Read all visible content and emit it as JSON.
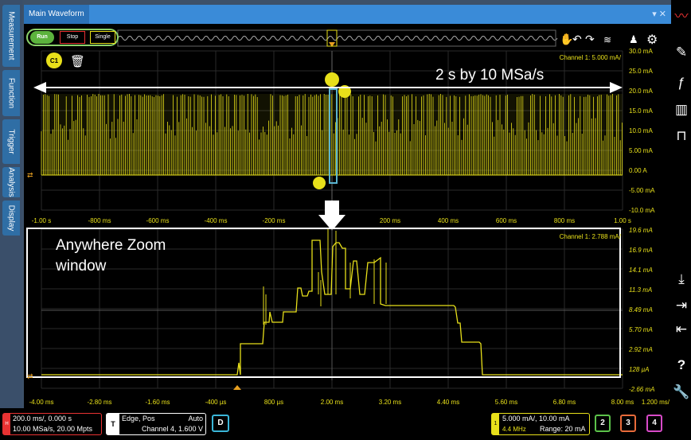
{
  "left_tabs": [
    "Measurement",
    "Function",
    "Trigger",
    "Analysis",
    "Display"
  ],
  "window": {
    "title": "Main Waveform",
    "controls": "▾ ✕"
  },
  "controls": {
    "run": "Run",
    "stop": "Stop",
    "single": "Single",
    "channel_marker": "C1"
  },
  "main_plot": {
    "annotation": "2 s by 10 MSa/s",
    "channel_readout": "Channel 1: 5.000 mA/",
    "y_ticks": [
      "30.0 mA",
      "25.0 mA",
      "20.0 mA",
      "15.0 mA",
      "10.0 mA",
      "5.00 mA",
      "0.00 A",
      "-5.00 mA",
      "-10.0 mA"
    ],
    "x_ticks": [
      "-1.00 s",
      "-800 ms",
      "-600 ms",
      "-400 ms",
      "-200 ms",
      "",
      "200 ms",
      "400 ms",
      "600 ms",
      "800 ms",
      "1.00 s"
    ]
  },
  "zoom_plot": {
    "annotation": [
      "Anywhere Zoom",
      "window"
    ],
    "channel_readout": "Channel 1: 2.788 mA/",
    "y_ticks": [
      "19.6 mA",
      "16.9 mA",
      "14.1 mA",
      "11.3 mA",
      "8.49 mA",
      "5.70 mA",
      "2.92 mA",
      "128 µA",
      "-2.66 mA"
    ],
    "x_ticks": [
      "-4.00 ms",
      "-2.80 ms",
      "-1.60 ms",
      "-400 µs",
      "800 µs",
      "2.00 ms",
      "3.20 ms",
      "4.40 ms",
      "5.60 ms",
      "6.80 ms",
      "8.00 ms"
    ],
    "x_extra": "1.200 ms/"
  },
  "status_bar": {
    "timebase": {
      "marker": "H",
      "line1": "200.0 ms/, 0.000 s",
      "line2": "10.00 MSa/s, 20.00 Mpts"
    },
    "trigger": {
      "marker": "T",
      "line1": "Edge, Pos",
      "mode": "Auto",
      "line2": "Channel 4, 1.600 V"
    },
    "digital": "D",
    "channel1": {
      "marker": "1",
      "line1": "5.000 mA/, 10.00 mA",
      "bw": "4.4 MHz",
      "range": "Range: 20 mA"
    },
    "channels": [
      "2",
      "3",
      "4"
    ]
  },
  "colors": {
    "trace": "#e8e01a",
    "zoom_box": "#5ab4d0",
    "accent": "#3a8bd8",
    "grid": "#2a2a2a"
  }
}
